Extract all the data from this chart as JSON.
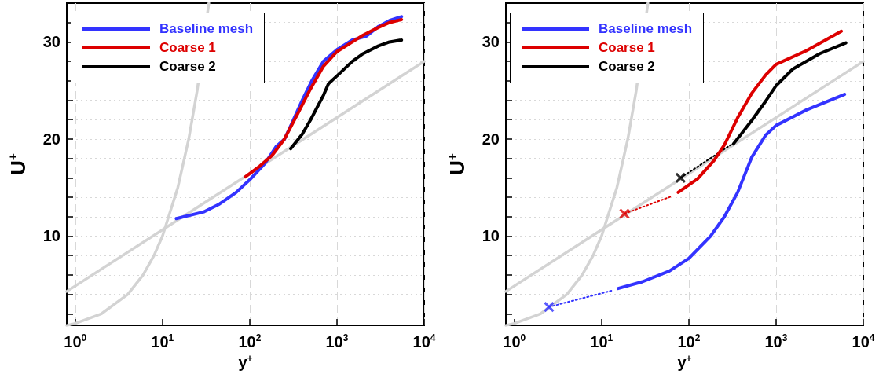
{
  "chart_data": [
    {
      "type": "line",
      "xlabel": "y$^{+}$",
      "ylabel": "U$^{+}$",
      "log": "x",
      "grid": true,
      "legend": "top left",
      "xlim": [
        0.8,
        10000
      ],
      "ylim": [
        0.8,
        34
      ],
      "xticks": [
        {
          "value": 1,
          "label": "10$^{0}$"
        },
        {
          "value": 10,
          "label": "10$^{1}$"
        },
        {
          "value": 100,
          "label": "10$^{2}$"
        },
        {
          "value": 1000,
          "label": "10$^{3}$"
        },
        {
          "value": 10000,
          "label": "10$^{4}$"
        }
      ],
      "yticks": [
        {
          "value": 2,
          "label": null
        },
        {
          "value": 4,
          "label": null
        },
        {
          "value": 6,
          "label": null
        },
        {
          "value": 8,
          "label": null
        },
        10,
        {
          "value": 12,
          "label": null
        },
        {
          "value": 14,
          "label": null
        },
        {
          "value": 16,
          "label": null
        },
        {
          "value": 18,
          "label": null
        },
        20,
        {
          "value": 22,
          "label": null
        },
        {
          "value": 24,
          "label": null
        },
        {
          "value": 26,
          "label": null
        },
        {
          "value": 28,
          "label": null
        },
        30,
        {
          "value": 32,
          "label": null
        }
      ],
      "series": [
        {
          "color": "#d3d3d3",
          "x": [
            0.8,
            10000
          ],
          "values": [
            4.3,
            28
          ]
        },
        {
          "color": "#d3d3d3",
          "x": [
            0.8,
            1,
            2,
            4,
            6,
            8,
            10,
            15,
            20,
            25,
            34
          ],
          "values": [
            0.8,
            1,
            2,
            4,
            6,
            8,
            10,
            15,
            20,
            25,
            34
          ]
        },
        {
          "name": "Baseline mesh",
          "color": "#3333ff",
          "x": [
            14.4,
            30,
            45,
            70,
            100,
            150,
            200,
            251,
            300,
            400,
            515,
            700,
            1000,
            1500,
            2180,
            3000,
            4000,
            5500
          ],
          "values": [
            11.8,
            12.5,
            13.3,
            14.5,
            15.8,
            17.5,
            19.2,
            20,
            21.5,
            24,
            26,
            28,
            29.2,
            30.2,
            30.6,
            31.6,
            32.2,
            32.6
          ]
        },
        {
          "name": "Coarse 1",
          "color": "#dd0000",
          "x": [
            89,
            130,
            180,
            250,
            350,
            500,
            700,
            1000,
            1500,
            2000,
            3000,
            4000,
            5500
          ],
          "values": [
            16.1,
            17.2,
            18.3,
            20,
            22.5,
            25.2,
            27.5,
            29,
            30,
            30.7,
            31.5,
            32,
            32.3
          ]
        },
        {
          "name": "Coarse 2",
          "color": "#000000",
          "x": [
            295,
            400,
            500,
            700,
            800,
            1000,
            1500,
            2000,
            3000,
            4000,
            5500
          ],
          "values": [
            19,
            20.5,
            22,
            24.5,
            25.7,
            26.5,
            28,
            28.8,
            29.6,
            30,
            30.2
          ]
        }
      ]
    },
    {
      "type": "line",
      "xlabel": "y$^{+}$",
      "ylabel": "U$^{+}$",
      "log": "x",
      "grid": true,
      "legend": "top left",
      "xlim": [
        0.8,
        10000
      ],
      "ylim": [
        0.8,
        34
      ],
      "xticks": [
        {
          "value": 1,
          "label": "10$^{0}$"
        },
        {
          "value": 10,
          "label": "10$^{1}$"
        },
        {
          "value": 100,
          "label": "10$^{2}$"
        },
        {
          "value": 1000,
          "label": "10$^{3}$"
        },
        {
          "value": 10000,
          "label": "10$^{4}$"
        }
      ],
      "yticks": [
        {
          "value": 2,
          "label": null
        },
        {
          "value": 4,
          "label": null
        },
        {
          "value": 6,
          "label": null
        },
        {
          "value": 8,
          "label": null
        },
        10,
        {
          "value": 12,
          "label": null
        },
        {
          "value": 14,
          "label": null
        },
        {
          "value": 16,
          "label": null
        },
        {
          "value": 18,
          "label": null
        },
        20,
        {
          "value": 22,
          "label": null
        },
        {
          "value": 24,
          "label": null
        },
        {
          "value": 26,
          "label": null
        },
        {
          "value": 28,
          "label": null
        },
        30,
        {
          "value": 32,
          "label": null
        }
      ],
      "series": [
        {
          "color": "#d3d3d3",
          "x": [
            0.8,
            10000
          ],
          "values": [
            4.3,
            28
          ]
        },
        {
          "color": "#d3d3d3",
          "x": [
            0.8,
            1,
            2,
            4,
            6,
            8,
            10,
            15,
            20,
            25,
            34
          ],
          "values": [
            0.8,
            1,
            2,
            4,
            6,
            8,
            10,
            15,
            20,
            25,
            34
          ]
        },
        {
          "name": "Baseline mesh",
          "color": "#3333ff",
          "x": [
            15.5,
            29.5,
            60,
            100,
            178,
            256,
            363,
            525,
            760,
            1000,
            2230,
            6100
          ],
          "values": [
            4.6,
            5.3,
            6.4,
            7.7,
            10,
            12,
            14.5,
            18.1,
            20.4,
            21.4,
            23,
            24.6
          ]
        },
        {
          "name": "Coarse 1",
          "color": "#dd0000",
          "x": [
            75.5,
            126,
            195,
            256,
            363,
            525,
            760,
            1000,
            2230,
            5600
          ],
          "values": [
            14.5,
            15.9,
            17.8,
            19.4,
            22.2,
            24.7,
            26.6,
            27.7,
            29.1,
            31.1
          ]
        },
        {
          "name": "Coarse 2",
          "color": "#000000",
          "x": [
            325,
            525,
            760,
            1000,
            1550,
            3170,
            6300
          ],
          "values": [
            19.5,
            21.9,
            23.9,
            25.5,
            27.2,
            28.8,
            29.9
          ]
        },
        {
          "color": "#3333ff",
          "line_style": "dotted",
          "x": [
            2.5,
            13.3
          ],
          "values": [
            2.7,
            4.4
          ]
        },
        {
          "color": "#dd0000",
          "line_style": "dotted",
          "x": [
            18.3,
            64
          ],
          "values": [
            12.3,
            14.1
          ]
        },
        {
          "color": "#000000",
          "line_style": "dotted",
          "x": [
            80.5,
            316
          ],
          "values": [
            16,
            19.5
          ]
        },
        {
          "type": "scatter",
          "marker": "cross",
          "color": "#3333ff",
          "x": [
            2.5
          ],
          "values": [
            2.7
          ]
        },
        {
          "type": "scatter",
          "marker": "cross",
          "color": "#dd0000",
          "x": [
            18.3
          ],
          "values": [
            12.3
          ]
        },
        {
          "type": "scatter",
          "marker": "cross",
          "color": "#000000",
          "x": [
            80.5
          ],
          "values": [
            16
          ]
        }
      ]
    }
  ]
}
